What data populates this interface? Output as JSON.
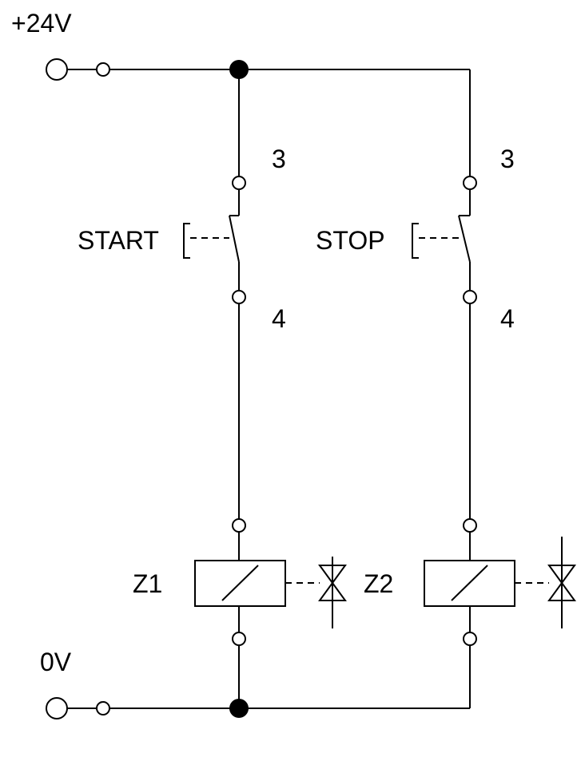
{
  "supply": {
    "positive_label": "+24V",
    "negative_label": "0V"
  },
  "branches": [
    {
      "switch_label": "START",
      "terminal_top": "3",
      "terminal_bottom": "4",
      "coil_label": "Z1"
    },
    {
      "switch_label": "STOP",
      "terminal_top": "3",
      "terminal_bottom": "4",
      "coil_label": "Z2"
    }
  ]
}
